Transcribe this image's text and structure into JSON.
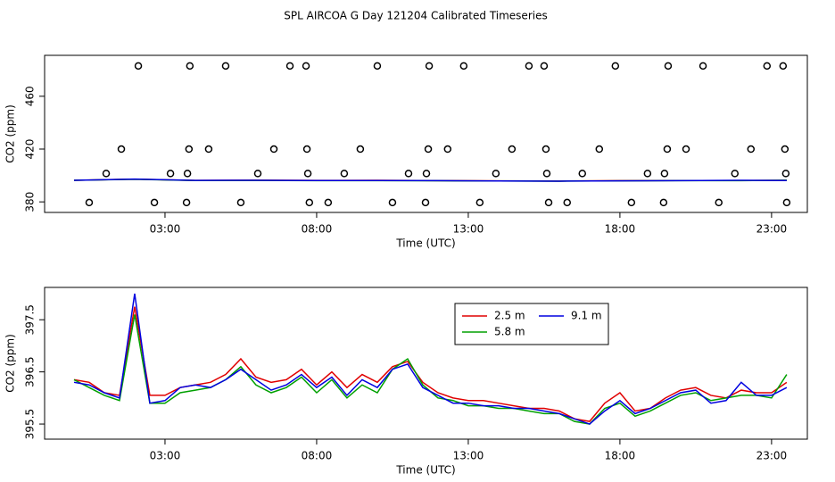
{
  "chart_data": [
    {
      "type": "line",
      "title": "SPL AIRCOA G  Day 121204  Calibrated Timeseries",
      "x_label": "Time (UTC)",
      "y_label": "CO2 (ppm)",
      "xlim": [
        -0.97,
        24.18
      ],
      "ylim": [
        372,
        491
      ],
      "xticks": [
        {
          "value": 3,
          "label": "03:00"
        },
        {
          "value": 8,
          "label": "08:00"
        },
        {
          "value": 13,
          "label": "13:00"
        },
        {
          "value": 18,
          "label": "18:00"
        },
        {
          "value": 23,
          "label": "23:00"
        }
      ],
      "yticks": [
        380,
        420,
        460
      ],
      "x": [
        0,
        2,
        4,
        6,
        8,
        10,
        12,
        14,
        16,
        18,
        20,
        22,
        23.5
      ],
      "series": [
        {
          "color": "#e00000",
          "values": [
            396.35,
            397.2,
            396.25,
            396.4,
            396.25,
            396.3,
            396.1,
            395.9,
            395.75,
            396.1,
            396.15,
            396.15,
            396.3
          ]
        },
        {
          "color": "#00a000",
          "values": [
            396.35,
            397.1,
            396.15,
            396.25,
            396.1,
            396.1,
            396.0,
            395.8,
            395.7,
            395.9,
            396.05,
            396.05,
            396.45
          ]
        },
        {
          "color": "#0000e0",
          "values": [
            396.3,
            397.3,
            396.25,
            396.35,
            396.2,
            396.2,
            396.05,
            395.85,
            395.7,
            395.95,
            396.1,
            396.3,
            396.2
          ]
        },
        {
          "type": "scatter",
          "color": "#000000",
          "x": [
            2.12,
            3.82,
            5.0,
            7.12,
            7.65,
            10.0,
            11.71,
            12.85,
            15.0,
            15.5,
            17.85,
            19.59,
            20.74,
            22.85,
            23.38,
            1.56,
            3.79,
            4.44,
            6.59,
            7.68,
            9.44,
            11.68,
            12.32,
            14.44,
            15.56,
            17.32,
            19.56,
            20.18,
            22.32,
            23.44,
            1.06,
            3.18,
            3.74,
            6.06,
            7.71,
            8.91,
            11.03,
            11.62,
            13.91,
            15.59,
            16.76,
            18.91,
            19.47,
            21.79,
            23.47,
            0.5,
            2.65,
            3.71,
            5.5,
            7.76,
            8.38,
            10.5,
            11.59,
            13.38,
            15.65,
            16.26,
            18.38,
            19.44,
            21.26,
            23.5
          ],
          "values": [
            483,
            483,
            483,
            483,
            483,
            483,
            483,
            483,
            483,
            483,
            483,
            483,
            483,
            483,
            483,
            420,
            420,
            420,
            420,
            420,
            420,
            420,
            420,
            420,
            420,
            420,
            420,
            420,
            420,
            420,
            401.5,
            401.5,
            401.5,
            401.5,
            401.5,
            401.5,
            401.5,
            401.5,
            401.5,
            401.5,
            401.5,
            401.5,
            401.5,
            401.5,
            401.5,
            379.5,
            379.5,
            379.5,
            379.5,
            379.5,
            379.5,
            379.5,
            379.5,
            379.5,
            379.5,
            379.5,
            379.5,
            379.5,
            379.5,
            379.5
          ]
        }
      ]
    },
    {
      "type": "line",
      "x_label": "Time (UTC)",
      "y_label": "CO2 (ppm)",
      "xlim": [
        -0.97,
        24.18
      ],
      "ylim": [
        395.21,
        398.12
      ],
      "xticks": [
        {
          "value": 3,
          "label": "03:00"
        },
        {
          "value": 8,
          "label": "08:00"
        },
        {
          "value": 13,
          "label": "13:00"
        },
        {
          "value": 18,
          "label": "18:00"
        },
        {
          "value": 23,
          "label": "23:00"
        }
      ],
      "yticks": [
        395.5,
        396.5,
        397.5
      ],
      "x": [
        0,
        0.5,
        1,
        1.5,
        2,
        2.5,
        3,
        3.5,
        4,
        4.5,
        5,
        5.5,
        6,
        6.5,
        7,
        7.5,
        8,
        8.5,
        9,
        9.5,
        10,
        10.5,
        11,
        11.5,
        12,
        12.5,
        13,
        13.5,
        14,
        14.5,
        15,
        15.5,
        16,
        16.5,
        17,
        17.5,
        18,
        18.5,
        19,
        19.5,
        20,
        20.5,
        21,
        21.5,
        22,
        22.5,
        23,
        23.5
      ],
      "series": [
        {
          "name": "2.5 m",
          "color": "#e00000",
          "values": [
            396.35,
            396.3,
            396.1,
            396.05,
            397.75,
            396.05,
            396.05,
            396.2,
            396.25,
            396.3,
            396.45,
            396.75,
            396.4,
            396.3,
            396.35,
            396.55,
            396.25,
            396.5,
            396.2,
            396.45,
            396.3,
            396.6,
            396.7,
            396.3,
            396.1,
            396.0,
            395.95,
            395.95,
            395.9,
            395.85,
            395.8,
            395.8,
            395.75,
            395.6,
            395.55,
            395.9,
            396.1,
            395.75,
            395.8,
            396.0,
            396.15,
            396.2,
            396.05,
            396.0,
            396.15,
            396.1,
            396.1,
            396.3
          ]
        },
        {
          "name": "5.8 m",
          "color": "#00a000",
          "values": [
            396.35,
            396.2,
            396.05,
            395.95,
            397.6,
            395.9,
            395.9,
            396.1,
            396.15,
            396.2,
            396.35,
            396.6,
            396.25,
            396.1,
            396.2,
            396.4,
            396.1,
            396.35,
            396.0,
            396.25,
            396.1,
            396.55,
            396.75,
            396.25,
            396.0,
            395.95,
            395.85,
            395.85,
            395.8,
            395.8,
            395.75,
            395.7,
            395.7,
            395.55,
            395.5,
            395.8,
            395.9,
            395.65,
            395.75,
            395.9,
            396.05,
            396.1,
            395.95,
            396.0,
            396.05,
            396.05,
            396.0,
            396.45
          ]
        },
        {
          "name": "9.1 m",
          "color": "#0000e0",
          "values": [
            396.3,
            396.25,
            396.1,
            396.0,
            398.0,
            395.9,
            395.95,
            396.2,
            396.25,
            396.2,
            396.35,
            396.55,
            396.35,
            396.15,
            396.25,
            396.45,
            396.2,
            396.4,
            396.05,
            396.35,
            396.2,
            396.55,
            396.65,
            396.2,
            396.05,
            395.9,
            395.9,
            395.85,
            395.85,
            395.8,
            395.8,
            395.75,
            395.7,
            395.6,
            395.5,
            395.75,
            395.95,
            395.7,
            395.8,
            395.95,
            396.1,
            396.15,
            395.9,
            395.95,
            396.3,
            396.05,
            396.05,
            396.2
          ]
        }
      ]
    }
  ]
}
